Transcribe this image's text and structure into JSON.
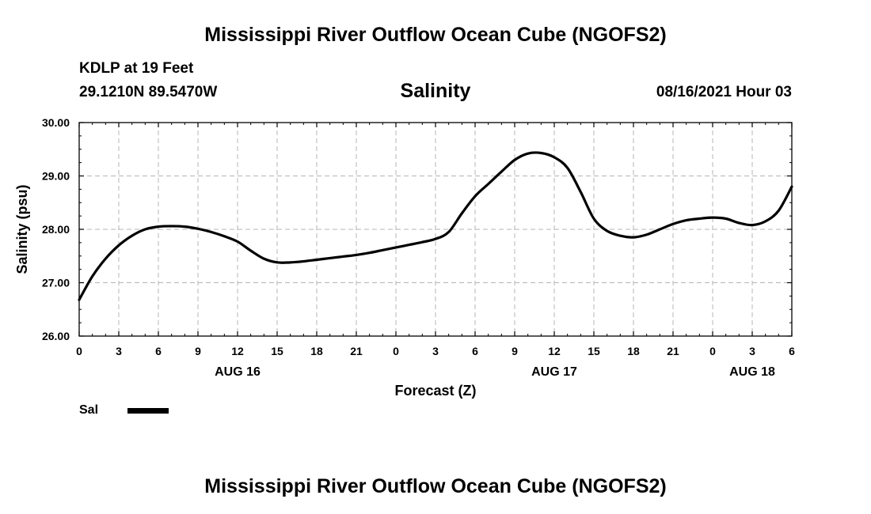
{
  "header": {
    "title": "Mississippi River Outflow Ocean Cube (NGOFS2)",
    "station": "KDLP at 19 Feet",
    "coordinates": "29.1210N  89.5470W",
    "variable": "Salinity",
    "datetime": "08/16/2021 Hour 03"
  },
  "footer": {
    "title": "Mississippi River Outflow Ocean Cube (NGOFS2)"
  },
  "legend": {
    "label": "Sal",
    "color": "#000000"
  },
  "chart_data": {
    "type": "line",
    "title": "Salinity",
    "xlabel": "Forecast (Z)",
    "ylabel": "Salinity (psu)",
    "xlim": [
      0,
      54
    ],
    "ylim": [
      26.0,
      30.0
    ],
    "grid": true,
    "xtick_values": [
      0,
      3,
      6,
      9,
      12,
      15,
      18,
      21,
      24,
      27,
      30,
      33,
      36,
      39,
      42,
      45,
      48,
      51,
      54
    ],
    "xtick_labels": [
      "0",
      "3",
      "6",
      "9",
      "12",
      "15",
      "18",
      "21",
      "0",
      "3",
      "6",
      "9",
      "12",
      "15",
      "18",
      "21",
      "0",
      "3",
      "6"
    ],
    "ytick_values": [
      26.0,
      27.0,
      28.0,
      29.0,
      30.0
    ],
    "ytick_labels": [
      "26.00",
      "27.00",
      "28.00",
      "29.00",
      "30.00"
    ],
    "date_labels": [
      {
        "label": "AUG 16",
        "x": 12
      },
      {
        "label": "AUG 17",
        "x": 36
      },
      {
        "label": "AUG 18",
        "x": 51
      }
    ],
    "series": [
      {
        "name": "Sal",
        "color": "#000000",
        "x": [
          0,
          1,
          2,
          3,
          4,
          5,
          6,
          7,
          8,
          9,
          10,
          11,
          12,
          13,
          14,
          15,
          16,
          17,
          18,
          19,
          20,
          21,
          22,
          23,
          24,
          25,
          26,
          27,
          28,
          29,
          30,
          31,
          32,
          33,
          34,
          35,
          36,
          37,
          38,
          39,
          40,
          41,
          42,
          43,
          44,
          45,
          46,
          47,
          48,
          49,
          50,
          51,
          52,
          53,
          54
        ],
        "y": [
          26.68,
          27.12,
          27.45,
          27.7,
          27.88,
          28.0,
          28.05,
          28.06,
          28.05,
          28.01,
          27.95,
          27.87,
          27.77,
          27.6,
          27.45,
          27.38,
          27.38,
          27.4,
          27.43,
          27.46,
          27.49,
          27.52,
          27.56,
          27.61,
          27.66,
          27.71,
          27.76,
          27.82,
          27.95,
          28.3,
          28.62,
          28.85,
          29.08,
          29.3,
          29.42,
          29.43,
          29.35,
          29.15,
          28.7,
          28.2,
          27.97,
          27.88,
          27.85,
          27.9,
          28.0,
          28.1,
          28.17,
          28.2,
          28.22,
          28.2,
          28.12,
          28.08,
          28.15,
          28.35,
          28.8
        ]
      }
    ]
  }
}
